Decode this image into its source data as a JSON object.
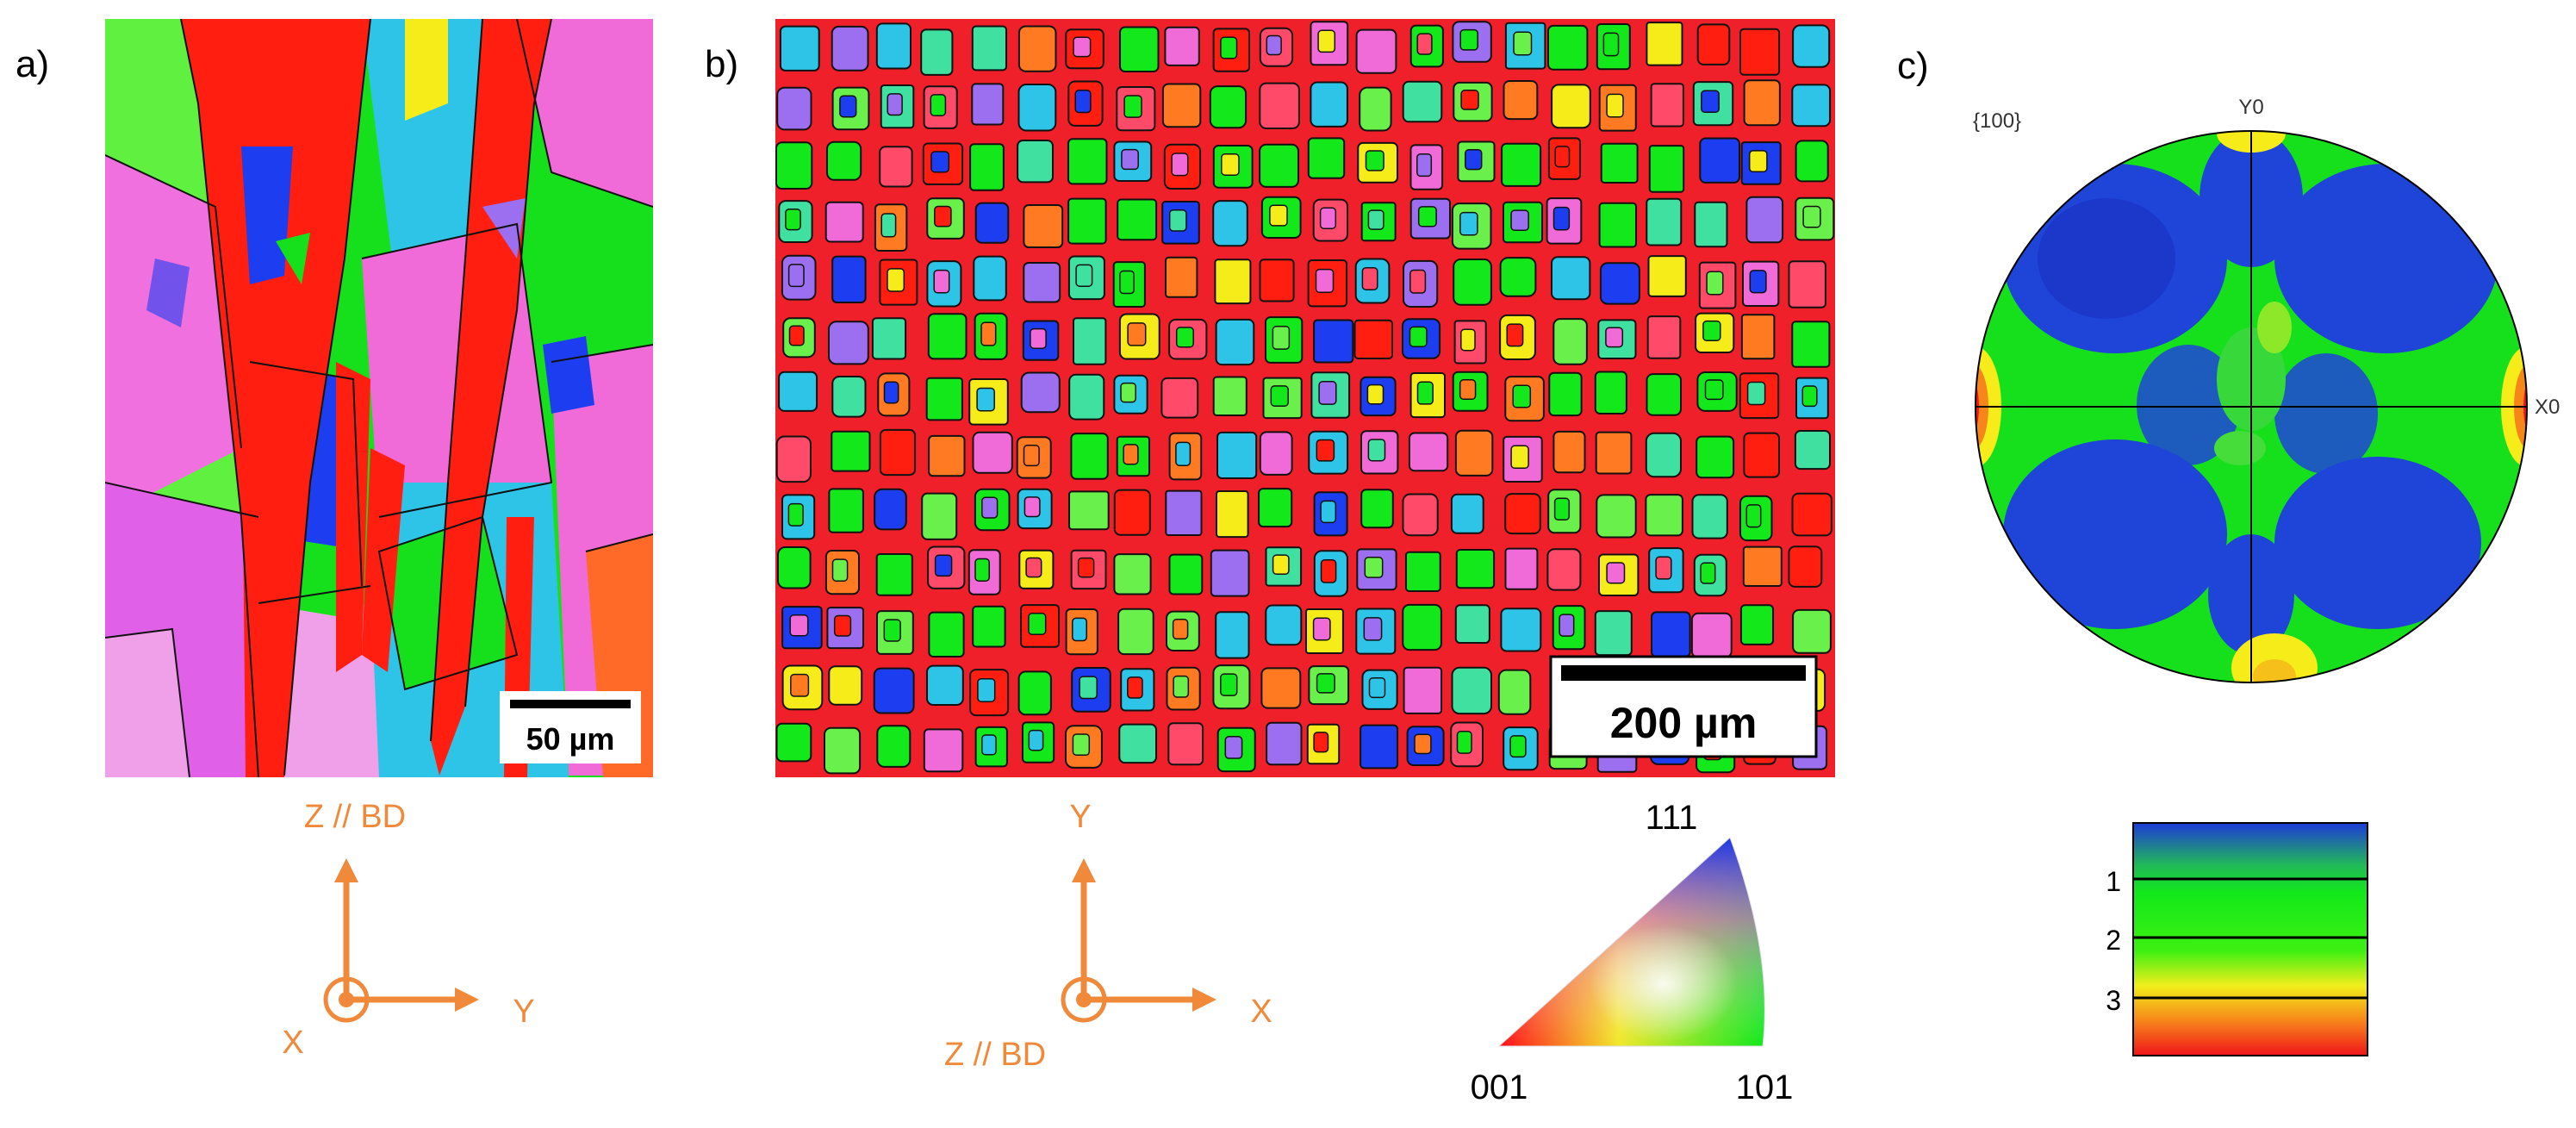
{
  "figure": {
    "panels": [
      {
        "label": "a)",
        "scale_bar": "50 µm",
        "axes": {
          "vertical": "Z // BD",
          "horizontal": "Y",
          "out_of_plane": "X"
        }
      },
      {
        "label": "b)",
        "scale_bar": "200 µm",
        "axes": {
          "vertical": "Y",
          "horizontal": "X",
          "out_of_plane": "Z // BD"
        }
      },
      {
        "label": "c)",
        "pole_figure_label": "{100}",
        "y_axis": "Y0",
        "x_axis": "X0"
      }
    ],
    "ipf_key": {
      "corners": [
        "001",
        "101",
        "111"
      ]
    },
    "colorbar": {
      "ticks": [
        "1",
        "2",
        "3"
      ]
    },
    "colors": {
      "accent_orange": "#f08a3a",
      "red": "#ff1e10",
      "green": "#12e81a",
      "blue": "#1d3df0",
      "magenta": "#f06bd8",
      "cyan": "#2ec4e8",
      "yellow": "#f6ec1a"
    }
  }
}
